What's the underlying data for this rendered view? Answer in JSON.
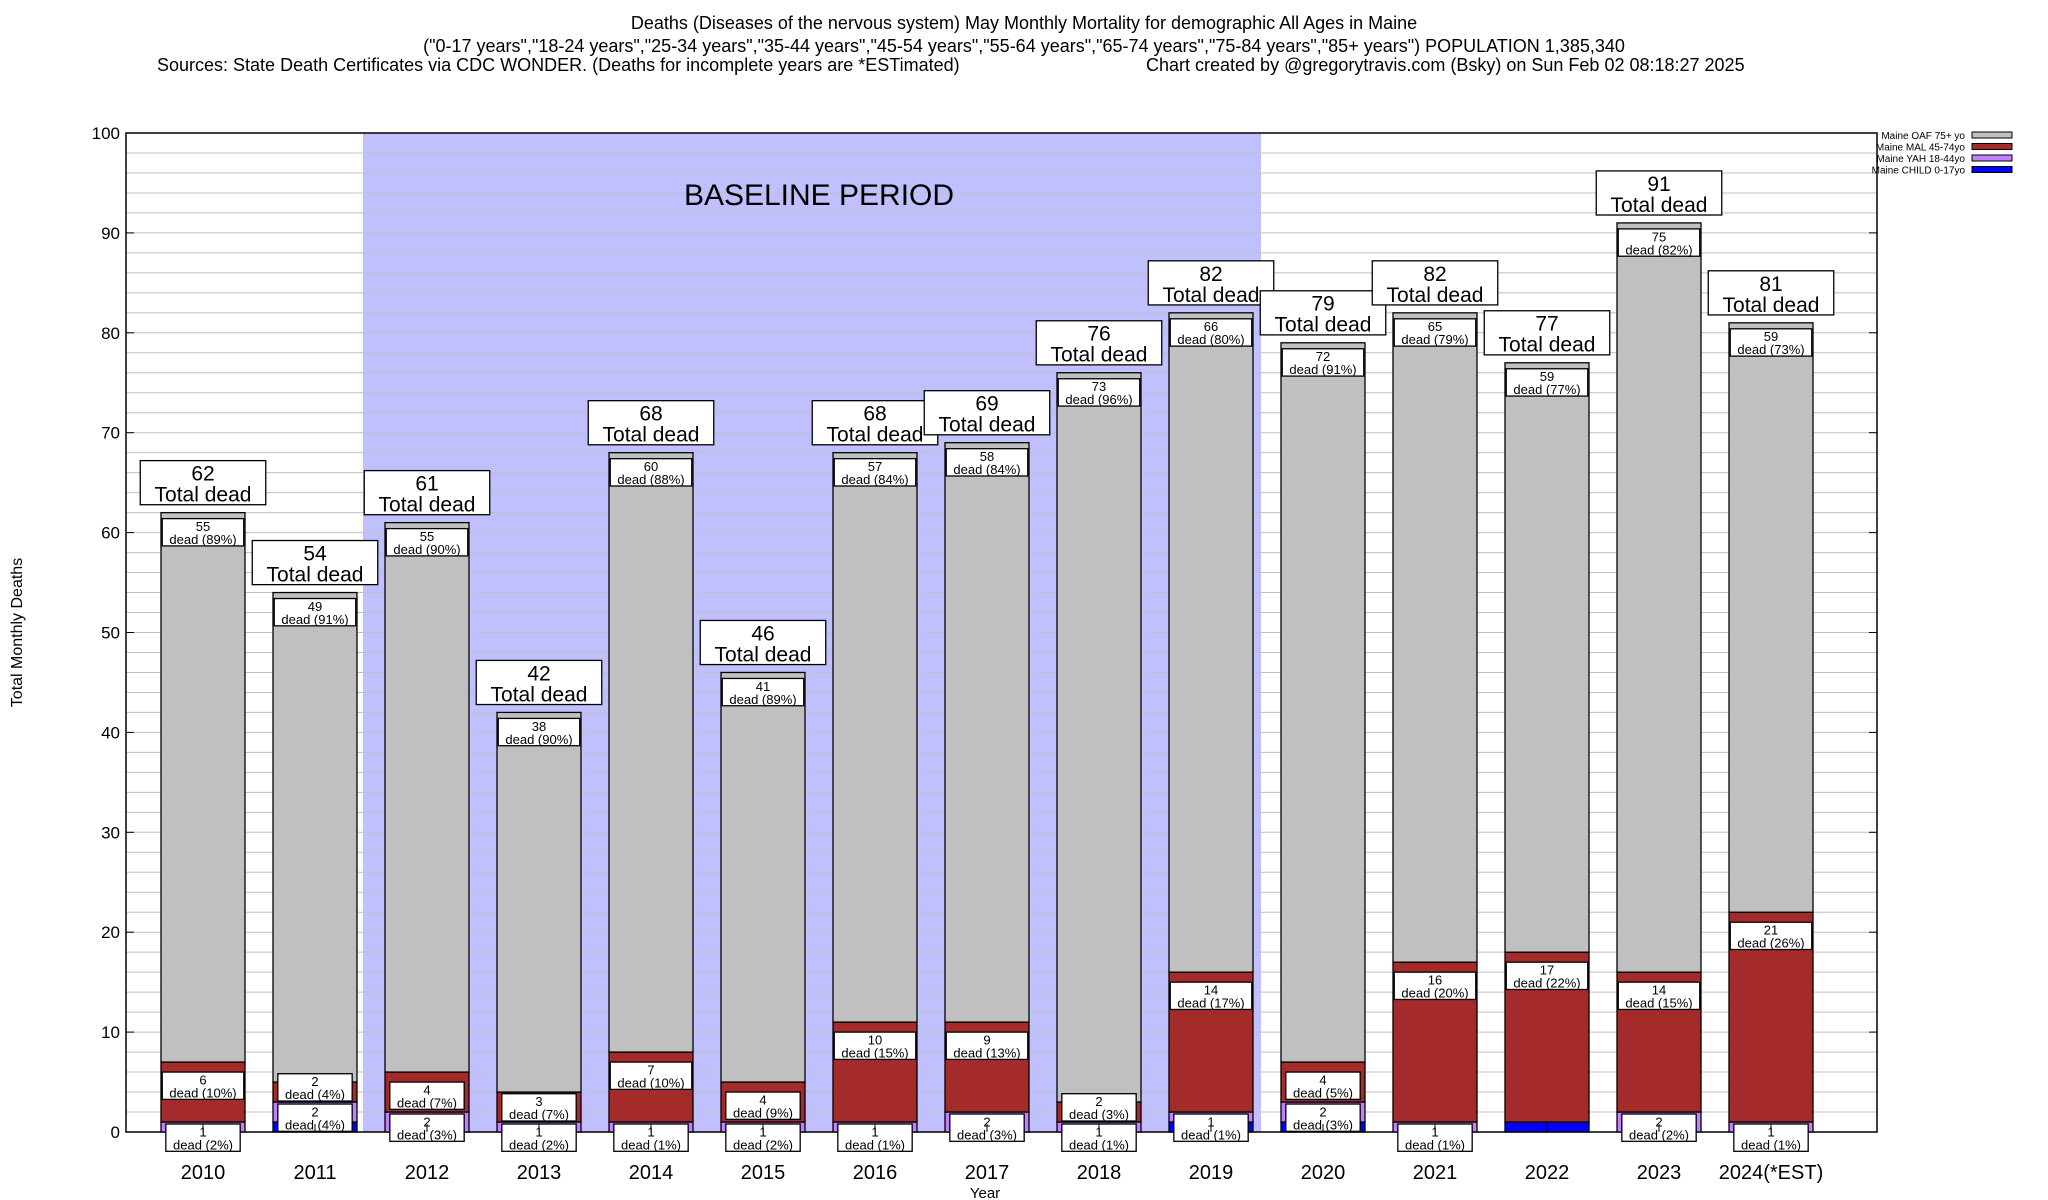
{
  "chart_data": {
    "type": "bar",
    "stacked": true,
    "title": "Deaths (Diseases of the nervous system) May Monthly Mortality for demographic All Ages in Maine",
    "subtitle": "(\"0-17 years\",\"18-24 years\",\"25-34 years\",\"35-44 years\",\"45-54 years\",\"55-64 years\",\"65-74 years\",\"75-84 years\",\"85+ years\") POPULATION 1,385,340",
    "sources": "Sources: State Death Certificates via CDC WONDER. (Deaths for incomplete years are *ESTimated)",
    "credit": "Chart created by @gregorytravis.com (Bsky) on Sun Feb 02 08:18:27 2025",
    "xlabel": "Year",
    "ylabel": "Total Monthly Deaths",
    "ylim": [
      0,
      100
    ],
    "yticks": [
      0,
      10,
      20,
      30,
      40,
      50,
      60,
      70,
      80,
      90,
      100
    ],
    "grid": true,
    "legend_position": "top-right",
    "annotation": "BASELINE PERIOD",
    "baseline_range": [
      "2012",
      "2019"
    ],
    "total_suffix": "Total dead",
    "dead_word": "dead",
    "categories": [
      "2010",
      "2011",
      "2012",
      "2013",
      "2014",
      "2015",
      "2016",
      "2017",
      "2018",
      "2019",
      "2020",
      "2021",
      "2022",
      "2023",
      "2024(*EST)"
    ],
    "totals": [
      62,
      54,
      61,
      42,
      68,
      46,
      68,
      69,
      76,
      82,
      79,
      82,
      77,
      91,
      81
    ],
    "series": [
      {
        "name": "Maine CHILD 0-17yo",
        "color": "#0000ff",
        "values": [
          0,
          1,
          0,
          0,
          0,
          0,
          0,
          0,
          0,
          1,
          1,
          0,
          1,
          0,
          0
        ],
        "pct": [
          null,
          null,
          null,
          null,
          null,
          null,
          null,
          null,
          null,
          null,
          null,
          null,
          null,
          null,
          null
        ]
      },
      {
        "name": "Maine YAH 18-44yo",
        "color": "#c080ff",
        "values": [
          1,
          2,
          2,
          1,
          1,
          1,
          1,
          2,
          1,
          1,
          2,
          1,
          0,
          2,
          1
        ],
        "pct": [
          2,
          4,
          3,
          2,
          1,
          2,
          1,
          3,
          1,
          1,
          3,
          1,
          null,
          2,
          1
        ]
      },
      {
        "name": "Maine MAL 45-74yo",
        "color": "#a52a2a",
        "values": [
          6,
          2,
          4,
          3,
          7,
          4,
          10,
          9,
          2,
          14,
          4,
          16,
          17,
          14,
          21
        ],
        "pct": [
          10,
          4,
          7,
          7,
          10,
          9,
          15,
          13,
          3,
          17,
          5,
          20,
          22,
          15,
          26
        ]
      },
      {
        "name": "Maine OAF 75+ yo",
        "color": "#c0c0c0",
        "values": [
          55,
          49,
          55,
          38,
          60,
          41,
          57,
          58,
          73,
          66,
          72,
          65,
          59,
          75,
          59
        ],
        "pct": [
          89,
          91,
          90,
          90,
          88,
          89,
          84,
          84,
          96,
          80,
          91,
          79,
          77,
          82,
          73
        ]
      }
    ],
    "colors": {
      "baseline_shade": "#c0c0ff",
      "grid": "#c0c0c0"
    }
  }
}
